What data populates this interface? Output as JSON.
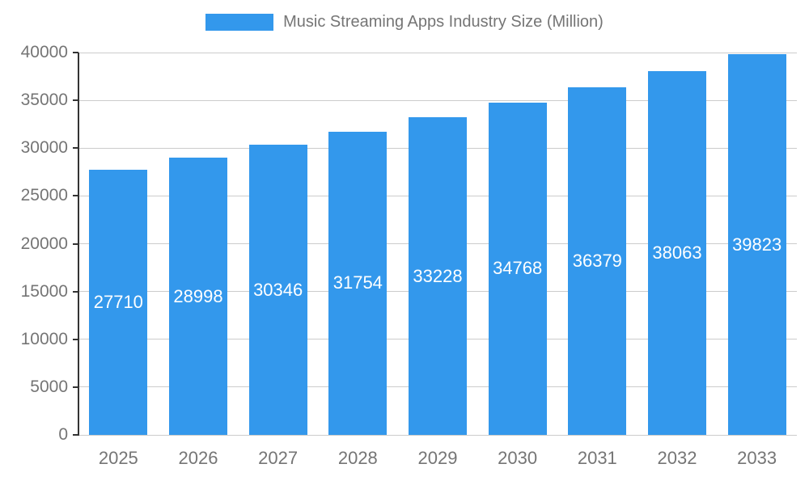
{
  "chart_data": {
    "type": "bar",
    "title": "Music Streaming Apps Industry Size (Million)",
    "categories": [
      "2025",
      "2026",
      "2027",
      "2028",
      "2029",
      "2030",
      "2031",
      "2032",
      "2033"
    ],
    "values": [
      27710,
      28998,
      30346,
      31754,
      33228,
      34768,
      36379,
      38063,
      39823
    ],
    "xlabel": "",
    "ylabel": "",
    "ylim": [
      0,
      40000
    ],
    "yticks": [
      0,
      5000,
      10000,
      15000,
      20000,
      25000,
      30000,
      35000,
      40000
    ],
    "grid": true,
    "legend_position": "top",
    "colors": {
      "bar": "#3398EC",
      "value_label": "#ffffff",
      "axis_text": "#757575",
      "grid_line": "#cccccc",
      "axis_line": "#333333"
    }
  }
}
